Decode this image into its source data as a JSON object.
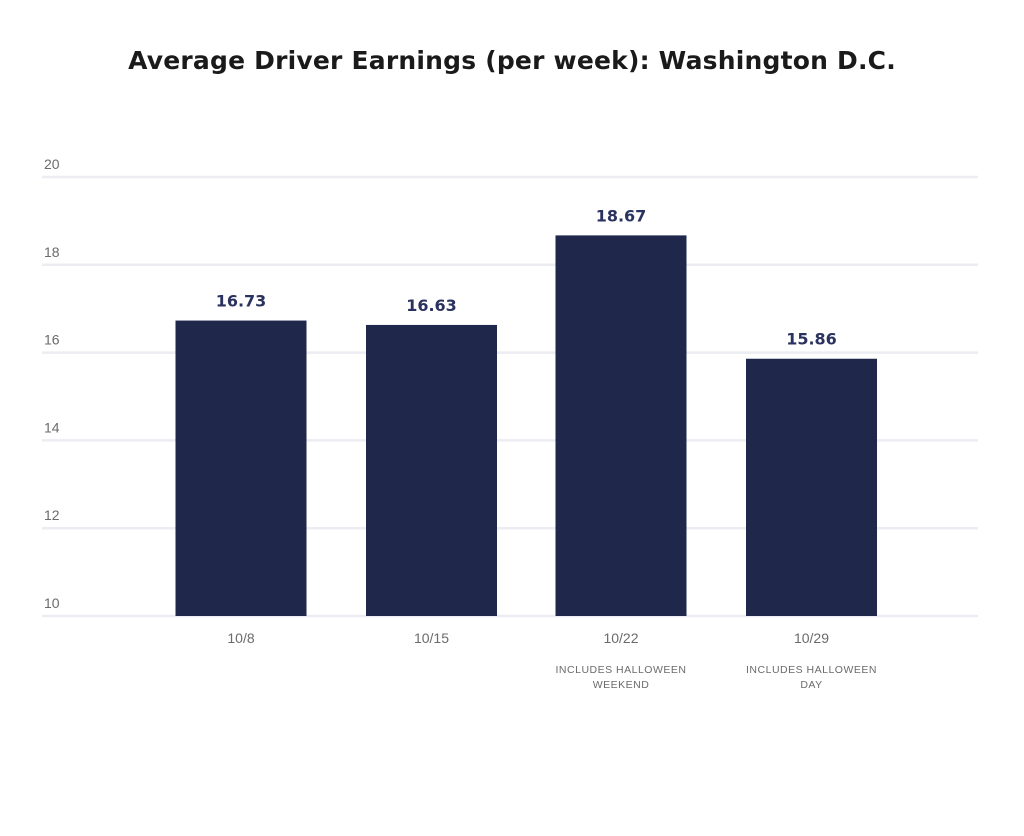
{
  "chart_data": {
    "type": "bar",
    "title": "Average Driver Earnings (per week): Washington D.C.",
    "xlabel": "",
    "ylabel": "",
    "categories": [
      "10/8",
      "10/15",
      "10/22",
      "10/29"
    ],
    "category_notes": [
      "",
      "",
      "INCLUDES HALLOWEEN WEEKEND",
      "INCLUDES HALLOWEEN DAY"
    ],
    "values": [
      16.73,
      16.63,
      18.67,
      15.86
    ],
    "data_labels": [
      "16.73",
      "16.63",
      "18.67",
      "15.86"
    ],
    "ylim": [
      10,
      20
    ],
    "yticks": [
      10,
      12,
      14,
      16,
      18,
      20
    ],
    "grid": true,
    "legend": "none",
    "colors": {
      "bar": "#1f284a",
      "label": "#2a3360",
      "grid": "#ecedf3"
    }
  }
}
